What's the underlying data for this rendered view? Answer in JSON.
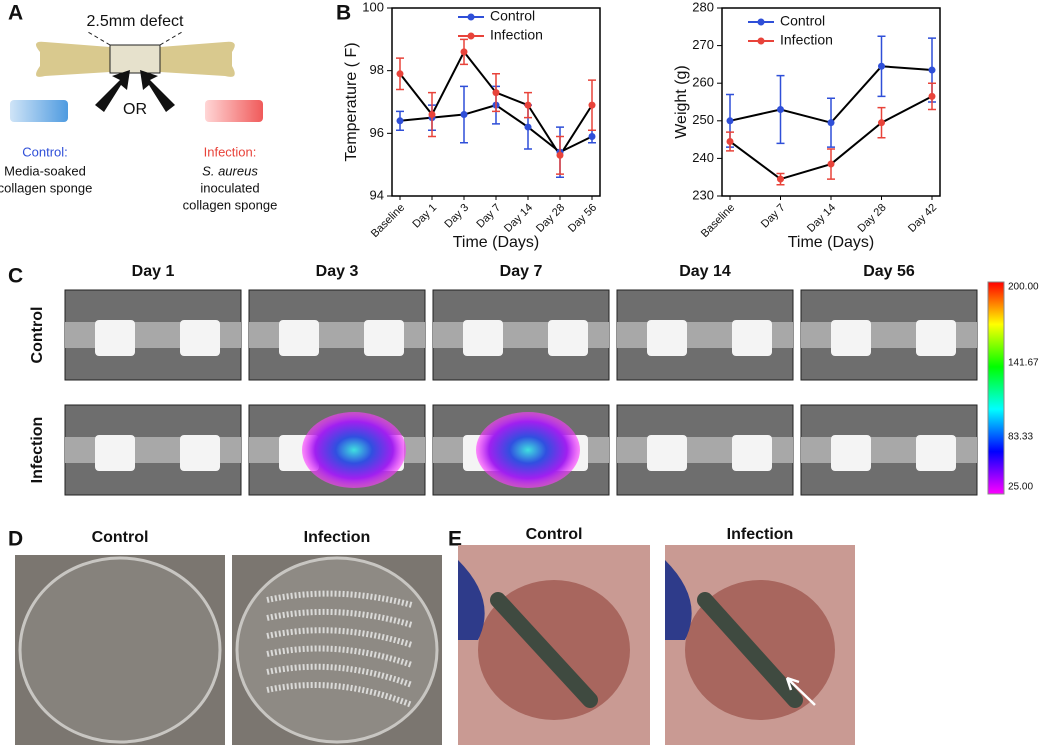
{
  "panel_labels": [
    "A",
    "B",
    "C",
    "D",
    "E"
  ],
  "panel_a": {
    "defect_label": "2.5mm defect",
    "or_label": "OR",
    "control_title": "Control:",
    "control_desc": [
      "Media-soaked",
      "collagen sponge"
    ],
    "infection_title": "Infection:",
    "infection_species": "S. aureus",
    "infection_desc": [
      "inoculated",
      "collagen sponge"
    ]
  },
  "chart_data": [
    {
      "type": "line",
      "ylabel": "Temperature ( F)",
      "xlabel": "Time (Days)",
      "categories": [
        "Baseline",
        "Day 1",
        "Day 3",
        "Day 7",
        "Day 14",
        "Day 28",
        "Day 56"
      ],
      "series": [
        {
          "name": "Control",
          "color": "#2f4fd8",
          "values": [
            96.4,
            96.5,
            96.6,
            96.9,
            96.2,
            95.4,
            95.9
          ],
          "errors": [
            0.3,
            0.4,
            0.9,
            0.6,
            0.7,
            0.8,
            0.2
          ]
        },
        {
          "name": "Infection",
          "color": "#e8433a",
          "values": [
            97.9,
            96.6,
            98.6,
            97.3,
            96.9,
            95.3,
            96.9
          ],
          "errors": [
            0.5,
            0.7,
            0.4,
            0.6,
            0.4,
            0.6,
            0.8
          ]
        }
      ],
      "line_color": "#000000",
      "ylim": [
        94,
        100
      ],
      "yticks": [
        94,
        96,
        98,
        100
      ],
      "legend": "top"
    },
    {
      "type": "line",
      "ylabel": "Weight (g)",
      "xlabel": "Time (Days)",
      "categories": [
        "Baseline",
        "Day 7",
        "Day 14",
        "Day 28",
        "Day 42"
      ],
      "series": [
        {
          "name": "Control",
          "color": "#2f4fd8",
          "values": [
            250,
            253,
            249.5,
            264.5,
            263.5
          ],
          "errors": [
            7,
            9,
            6.5,
            8,
            8.5
          ]
        },
        {
          "name": "Infection",
          "color": "#e8433a",
          "values": [
            244.5,
            234.5,
            238.5,
            249.5,
            256.5
          ],
          "errors": [
            2.5,
            1.5,
            4,
            4,
            3.5
          ]
        }
      ],
      "line_color": "#000000",
      "ylim": [
        230,
        280
      ],
      "yticks": [
        230,
        240,
        250,
        260,
        270,
        280
      ],
      "legend": "top"
    }
  ],
  "panel_c": {
    "columns": [
      "Day 1",
      "Day 3",
      "Day 7",
      "Day 14",
      "Day 56"
    ],
    "rows": [
      "Control",
      "Infection"
    ],
    "colorbar_labels": [
      "200.00",
      "141.67",
      "83.33",
      "25.00"
    ]
  },
  "panel_d": {
    "columns": [
      "Control",
      "Infection"
    ]
  },
  "panel_e": {
    "columns": [
      "Control",
      "Infection"
    ]
  }
}
